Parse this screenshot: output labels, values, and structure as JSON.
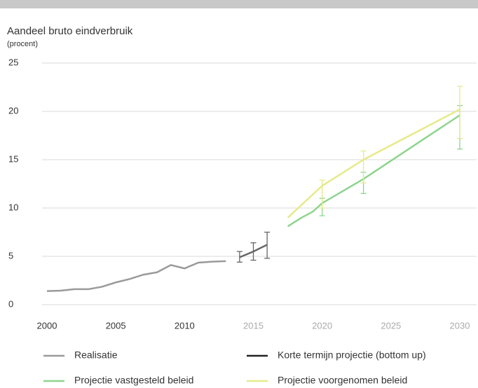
{
  "chart_data": {
    "type": "line",
    "title": "Aandeel bruto eindverbruik",
    "subtitle": "(procent)",
    "xlim": [
      2000,
      2030
    ],
    "xticks": [
      2000,
      2005,
      2010,
      2015,
      2020,
      2025,
      2030
    ],
    "xtick_colors": [
      "#333",
      "#333",
      "#333",
      "#aaa",
      "#aaa",
      "#aaa",
      "#aaa"
    ],
    "ylim": [
      0,
      25
    ],
    "yticks": [
      0,
      5,
      10,
      15,
      20,
      25
    ],
    "grid": true,
    "series": [
      {
        "name": "Realisatie",
        "color": "#9a9a9a",
        "x": [
          2000,
          2001,
          2002,
          2003,
          2004,
          2005,
          2006,
          2007,
          2008,
          2009,
          2010,
          2011,
          2012,
          2013
        ],
        "values": [
          1.4,
          1.45,
          1.6,
          1.6,
          1.85,
          2.3,
          2.65,
          3.1,
          3.35,
          4.1,
          3.75,
          4.35,
          4.45,
          4.5
        ]
      },
      {
        "name": "Korte termijn projectie (bottom up)",
        "color": "#666666",
        "x": [
          2014,
          2015,
          2016
        ],
        "values": [
          4.9,
          5.5,
          6.2
        ],
        "lower": [
          4.4,
          4.6,
          4.8
        ],
        "upper": [
          5.5,
          6.4,
          7.5
        ]
      },
      {
        "name": "Projectie vastgesteld beleid",
        "color": "#8ed48e",
        "x": [
          2017.5,
          2018.5,
          2019.3,
          2020,
          2023,
          2030
        ],
        "values": [
          8.1,
          9.0,
          9.6,
          10.5,
          13.0,
          19.6
        ],
        "lower": [
          null,
          null,
          null,
          9.2,
          11.5,
          16.1
        ],
        "upper": [
          null,
          null,
          null,
          11.0,
          13.7,
          20.6
        ]
      },
      {
        "name": "Projectie voorgenomen beleid",
        "color": "#e6ea8a",
        "x": [
          2017.5,
          2020,
          2023,
          2030
        ],
        "values": [
          9.0,
          12.3,
          15.0,
          20.2
        ],
        "lower": [
          null,
          10.0,
          12.6,
          17.2
        ],
        "upper": [
          null,
          12.9,
          15.9,
          22.6
        ]
      }
    ]
  }
}
